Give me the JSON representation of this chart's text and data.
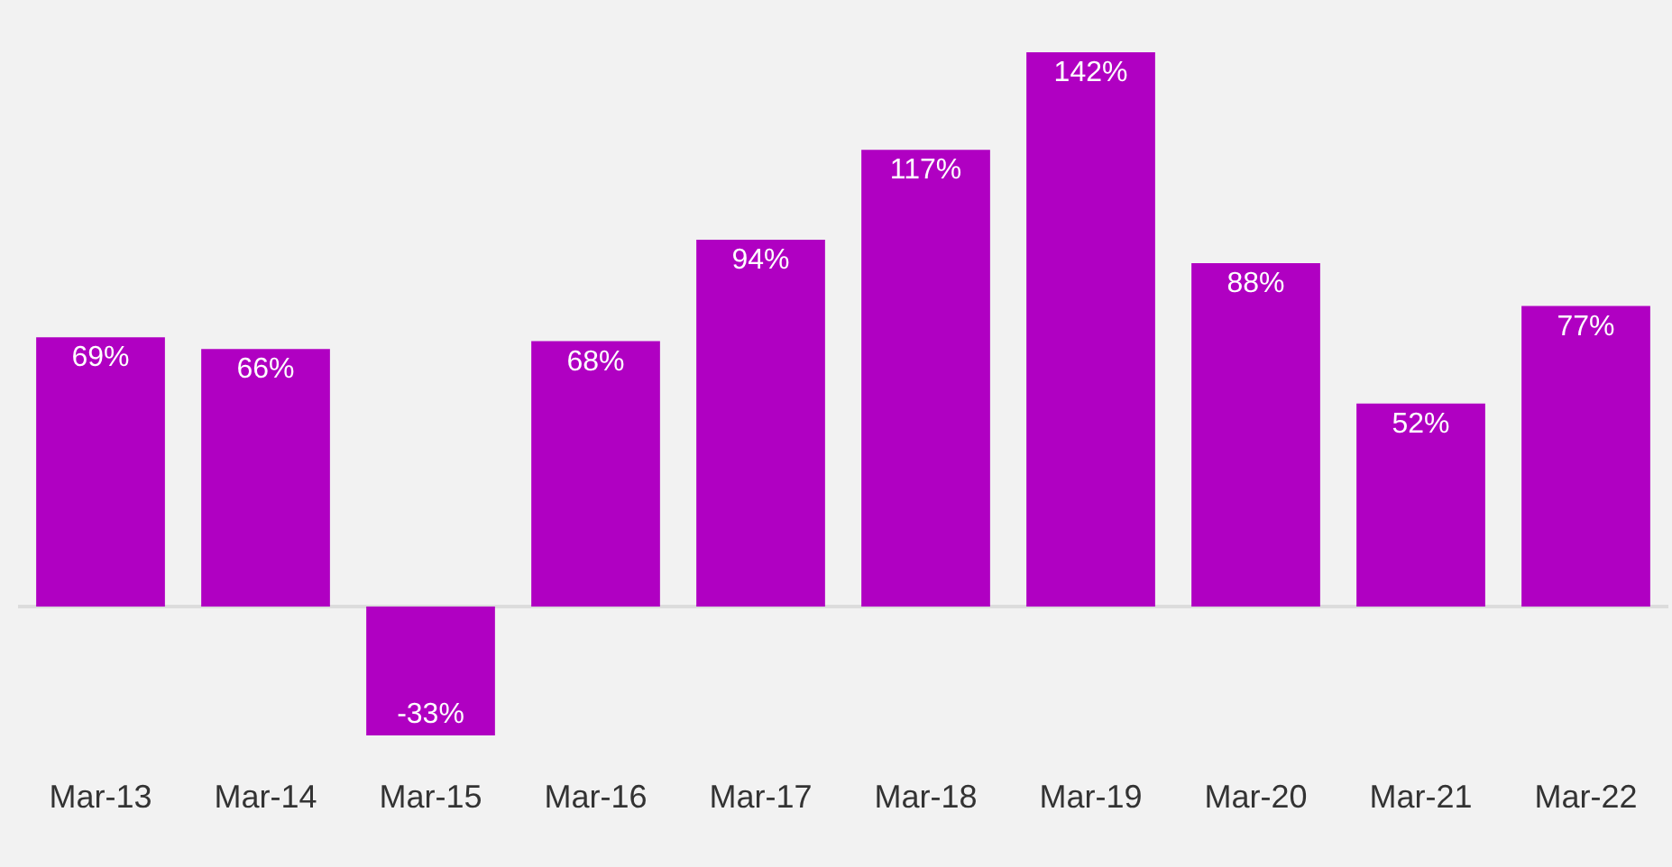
{
  "chart_data": {
    "type": "bar",
    "categories": [
      "Mar-13",
      "Mar-14",
      "Mar-15",
      "Mar-16",
      "Mar-17",
      "Mar-18",
      "Mar-19",
      "Mar-20",
      "Mar-21",
      "Mar-22"
    ],
    "values": [
      69,
      66,
      -33,
      68,
      94,
      117,
      142,
      88,
      52,
      77
    ],
    "value_labels": [
      "69%",
      "66%",
      "-33%",
      "68%",
      "94%",
      "117%",
      "142%",
      "88%",
      "52%",
      "77%"
    ],
    "color": "#b000c2",
    "grid": false,
    "legend": false
  }
}
